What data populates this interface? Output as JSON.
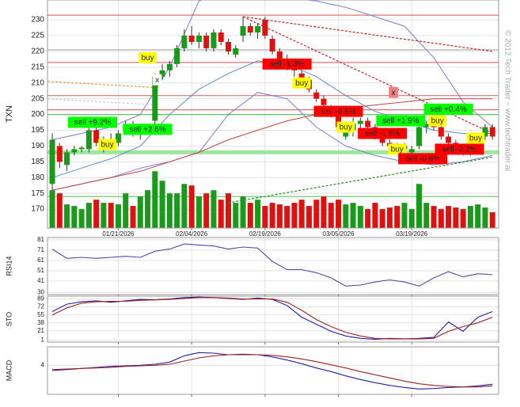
{
  "chart_data": [
    {
      "type": "candlestick",
      "y_label": "TXN",
      "watermark": "© 2012 Tech Trader ~ www.techtrader.ai",
      "xlim": [
        -0.65,
        60.84
      ],
      "ylim": [
        164,
        236.3
      ],
      "yticks": [
        170,
        175,
        180,
        185,
        190,
        195,
        200,
        205,
        210,
        215,
        220,
        225,
        230
      ],
      "xticks": [
        {
          "value": 9,
          "label": "01/21/2026"
        },
        {
          "value": 19,
          "label": "02/04/2026"
        },
        {
          "value": 29,
          "label": "02/19/2026"
        },
        {
          "value": 39,
          "label": "03/05/2026"
        },
        {
          "value": 49,
          "label": "03/19/2026"
        }
      ],
      "grid": true,
      "up_color": "#1a9a1a",
      "down_color": "#e01010",
      "open": [
        178,
        190,
        184,
        188,
        189,
        189,
        195,
        190,
        192,
        191,
        195,
        197,
        194,
        196,
        198,
        212,
        214,
        216,
        221,
        225,
        223,
        225,
        221,
        226,
        223,
        219,
        225,
        228,
        226,
        230,
        224,
        220,
        217,
        215,
        213,
        211,
        207,
        205,
        202,
        200,
        193,
        195,
        197,
        198,
        196,
        193,
        191,
        190,
        189,
        188,
        190,
        196,
        197,
        196,
        193,
        191,
        189,
        188,
        190,
        193,
        196
      ],
      "high": [
        194,
        191,
        189,
        190,
        190,
        196,
        196,
        193,
        194,
        195,
        198,
        198,
        197,
        197,
        213,
        216,
        217,
        222,
        227,
        228,
        226,
        226,
        227,
        227,
        224,
        222,
        231,
        229,
        229,
        231,
        225,
        221,
        219,
        216,
        214,
        212,
        208,
        206,
        203,
        201,
        197,
        199,
        199,
        199,
        197,
        194,
        192,
        191,
        191,
        190,
        197,
        198,
        198,
        197,
        194,
        192,
        190,
        191,
        193,
        197,
        197
      ],
      "low": [
        176,
        183,
        182,
        187,
        188,
        188,
        190,
        188,
        190,
        190,
        194,
        193,
        192,
        195,
        197,
        211,
        212,
        215,
        220,
        222,
        221,
        220,
        220,
        222,
        219,
        218,
        223,
        225,
        224,
        224,
        219,
        216,
        214,
        212,
        210,
        207,
        204,
        202,
        199,
        195,
        192,
        193,
        195,
        195,
        192,
        190,
        189,
        188,
        188,
        187,
        189,
        194,
        195,
        192,
        190,
        188,
        187,
        187,
        189,
        192,
        192
      ],
      "close": [
        192,
        185,
        188,
        189,
        189.5,
        195,
        191,
        192,
        191,
        194,
        197,
        194,
        196,
        196.5,
        212,
        214,
        216,
        221,
        225,
        223,
        225,
        221,
        226,
        223,
        220,
        221,
        228,
        226,
        228,
        225,
        220,
        217,
        215,
        214,
        211,
        208,
        205,
        203,
        200,
        196,
        195,
        197,
        198,
        196,
        193,
        191,
        190,
        189,
        190,
        189,
        196,
        197,
        196,
        193,
        191,
        189,
        188,
        190,
        192,
        196,
        193
      ],
      "volume": [
        176,
        175,
        171.5,
        171,
        170,
        172,
        173,
        172,
        172,
        171.5,
        175,
        171,
        174,
        176,
        182,
        179,
        175,
        175,
        178,
        177.5,
        174,
        175,
        176,
        173,
        175,
        172,
        174,
        172,
        173,
        171,
        172,
        171.5,
        171,
        172,
        173,
        171,
        173,
        174,
        172,
        173,
        171.5,
        172,
        171,
        170,
        172,
        170,
        170.5,
        171,
        172,
        170,
        178,
        172,
        171,
        170,
        171,
        170.5,
        170,
        171,
        171.5,
        170.5,
        169
      ],
      "overlays": [
        {
          "color": "#7a7ad8",
          "x": [
            0,
            4,
            8,
            12,
            16,
            20,
            24,
            28,
            32,
            36,
            40,
            44,
            48,
            52,
            56,
            60
          ],
          "values": [
            192,
            194,
            196,
            200,
            215,
            236,
            239,
            238,
            237,
            236,
            234,
            231,
            228,
            218,
            204,
            196
          ]
        },
        {
          "color": "#7a7ad8",
          "x": [
            0,
            4,
            8,
            12,
            16,
            20,
            24,
            28,
            32,
            36,
            40,
            44,
            48,
            52,
            56,
            60
          ],
          "values": [
            176,
            178,
            180,
            183,
            185,
            188,
            200,
            207,
            205,
            196,
            190,
            187,
            185,
            184,
            185,
            187
          ]
        },
        {
          "color": "#5b8bd0",
          "x": [
            0,
            4,
            8,
            12,
            16,
            20,
            24,
            28,
            32,
            36,
            40,
            44,
            48,
            52,
            56,
            60
          ],
          "values": [
            180,
            183,
            186,
            190,
            200,
            208,
            213,
            217,
            216,
            212,
            206,
            201,
            198,
            195,
            194,
            194
          ]
        },
        {
          "color": "#c84040",
          "x": [
            0,
            4,
            8,
            12,
            16,
            20,
            24,
            28,
            32,
            36,
            40,
            44,
            48,
            52,
            56,
            60
          ],
          "values": [
            176,
            178,
            180,
            182,
            185,
            188,
            192,
            195,
            198,
            200,
            202,
            203,
            204,
            205,
            205,
            205
          ]
        }
      ],
      "trendlines": [
        {
          "color": "#d22020",
          "x": [
            26,
            60
          ],
          "values": [
            231,
            220
          ]
        },
        {
          "color": "#d22020",
          "x": [
            26,
            60
          ],
          "values": [
            231,
            194
          ]
        },
        {
          "color": "#2a8a2a",
          "x": [
            24,
            60
          ],
          "values": [
            172,
            186.5
          ]
        },
        {
          "color": "#e0a040",
          "x": [
            -0.65,
            14.5
          ],
          "values": [
            210.5,
            208.5
          ]
        },
        {
          "color": "#cccccc",
          "x": [
            -0.65,
            14.5
          ],
          "values": [
            205,
            203
          ]
        }
      ],
      "levels": [
        {
          "value": 188,
          "color": "#9be89b",
          "thick": true
        },
        {
          "value": 200,
          "color": "#60c860"
        },
        {
          "value": 174,
          "color": "#60c860"
        },
        {
          "value": 231.5,
          "color": "#e07070"
        },
        {
          "value": 216.5,
          "color": "#e07070"
        },
        {
          "value": 220.5,
          "color": "#aaaaaa"
        },
        {
          "value": 206,
          "color": "#e07070"
        },
        {
          "value": 201.5,
          "color": "#e07070"
        }
      ],
      "annotations": [
        {
          "text": "buy",
          "index": 13,
          "price": 218,
          "color": "#ffff00"
        },
        {
          "text": "sell +9.2%",
          "index": 5.5,
          "price": 197.5,
          "color": "#00ff00"
        },
        {
          "text": "buy",
          "index": 7.5,
          "price": 190.5,
          "color": "#ffff00"
        },
        {
          "text": "sell +2.6%",
          "index": 13,
          "price": 195.3,
          "color": "#00ff00"
        },
        {
          "text": "sell -1.3%",
          "index": 32,
          "price": 216,
          "color": "#ff0000"
        },
        {
          "text": "buy",
          "index": 34,
          "price": 210,
          "color": "#ffff00"
        },
        {
          "text": "sell -6.8%",
          "index": 39,
          "price": 201,
          "color": "#ff0000"
        },
        {
          "text": "buy",
          "index": 40,
          "price": 196,
          "color": "#ffff00"
        },
        {
          "text": "sell +1.9%",
          "index": 47.5,
          "price": 198,
          "color": "#00ff00"
        },
        {
          "text": "sell -1.6%",
          "index": 45,
          "price": 194,
          "color": "#ff0000"
        },
        {
          "text": "buy",
          "index": 47,
          "price": 189,
          "color": "#ffff00"
        },
        {
          "text": "sell -0.6%",
          "index": 50.5,
          "price": 186,
          "color": "#ff0000"
        },
        {
          "text": "buy",
          "index": 52.5,
          "price": 198,
          "color": "#ffff00"
        },
        {
          "text": "sell +0.4%",
          "index": 54,
          "price": 201.7,
          "color": "#00ff00"
        },
        {
          "text": "sell -2.2%",
          "index": 55.5,
          "price": 189,
          "color": "#ff0000"
        },
        {
          "text": "buy",
          "index": 57.7,
          "price": 192.5,
          "color": "#ffff00"
        },
        {
          "text": "x",
          "index": 14.3,
          "price": 211,
          "color": "#ffffff"
        },
        {
          "text": "x",
          "index": 46.5,
          "price": 207,
          "color": "#f08080"
        }
      ]
    },
    {
      "type": "line",
      "y_label": "RSI14",
      "ylim": [
        27.8,
        83.2
      ],
      "yticks": [
        81,
        71,
        61,
        51,
        41,
        30
      ],
      "x": [
        0,
        2,
        4,
        6,
        8,
        10,
        12,
        14,
        16,
        18,
        20,
        22,
        24,
        26,
        28,
        30,
        32,
        34,
        36,
        38,
        40,
        42,
        44,
        46,
        48,
        50,
        52,
        54,
        56,
        58,
        60
      ],
      "series": [
        {
          "color": "#4a4aa8",
          "values": [
            72,
            63,
            64,
            63,
            64,
            65,
            64,
            70,
            72,
            77,
            76,
            75,
            72,
            74,
            73,
            60,
            52,
            52,
            49,
            44,
            36,
            37,
            40,
            42,
            40,
            36,
            44,
            50,
            45,
            48,
            47
          ]
        }
      ]
    },
    {
      "type": "line",
      "y_label": "STO",
      "ylim": [
        -3,
        95
      ],
      "yticks": [
        89,
        72,
        55,
        38,
        21,
        1
      ],
      "x": [
        0,
        2,
        4,
        6,
        8,
        10,
        12,
        14,
        16,
        18,
        20,
        22,
        24,
        26,
        28,
        30,
        32,
        34,
        36,
        38,
        40,
        42,
        44,
        46,
        48,
        50,
        52,
        54,
        56,
        58,
        60
      ],
      "series": [
        {
          "color": "#2020a0",
          "values": [
            62,
            78,
            83,
            85,
            82,
            85,
            88,
            87,
            89,
            92,
            93,
            92,
            90,
            88,
            91,
            88,
            75,
            50,
            35,
            20,
            10,
            5,
            3,
            5,
            4,
            5,
            7,
            40,
            20,
            50,
            62
          ]
        },
        {
          "color": "#a02020",
          "values": [
            55,
            70,
            80,
            83,
            84,
            84,
            86,
            87,
            88,
            90,
            92,
            92,
            91,
            89,
            89,
            89,
            82,
            65,
            45,
            30,
            18,
            10,
            5,
            4,
            4,
            4,
            5,
            20,
            30,
            38,
            50
          ]
        }
      ]
    },
    {
      "type": "line",
      "y_label": "MACD",
      "ylim": [
        -1.5,
        7.5
      ],
      "yticks": [
        4
      ],
      "x": [
        0,
        2,
        4,
        6,
        8,
        10,
        12,
        14,
        16,
        18,
        20,
        22,
        24,
        26,
        28,
        30,
        32,
        34,
        36,
        38,
        40,
        42,
        44,
        46,
        48,
        50,
        52,
        54,
        56,
        58,
        60
      ],
      "series": [
        {
          "color": "#2020a0",
          "values": [
            3.0,
            3.2,
            3.4,
            3.6,
            3.8,
            3.9,
            4.0,
            4.2,
            4.6,
            5.8,
            6.4,
            6.3,
            6.0,
            6.1,
            6.0,
            5.6,
            5.0,
            4.3,
            3.5,
            2.8,
            2.0,
            1.3,
            0.7,
            0.2,
            -0.2,
            -0.5,
            -0.4,
            -0.2,
            -0.1,
            0.1,
            0.4
          ]
        },
        {
          "color": "#a02020",
          "values": [
            3.2,
            3.3,
            3.4,
            3.5,
            3.6,
            3.8,
            3.9,
            4.0,
            4.2,
            4.8,
            5.4,
            5.8,
            6.0,
            6.0,
            6.0,
            5.9,
            5.6,
            5.2,
            4.7,
            4.1,
            3.5,
            2.8,
            2.2,
            1.6,
            1.0,
            0.5,
            0.2,
            0.0,
            -0.1,
            -0.1,
            0.1
          ]
        }
      ]
    }
  ]
}
